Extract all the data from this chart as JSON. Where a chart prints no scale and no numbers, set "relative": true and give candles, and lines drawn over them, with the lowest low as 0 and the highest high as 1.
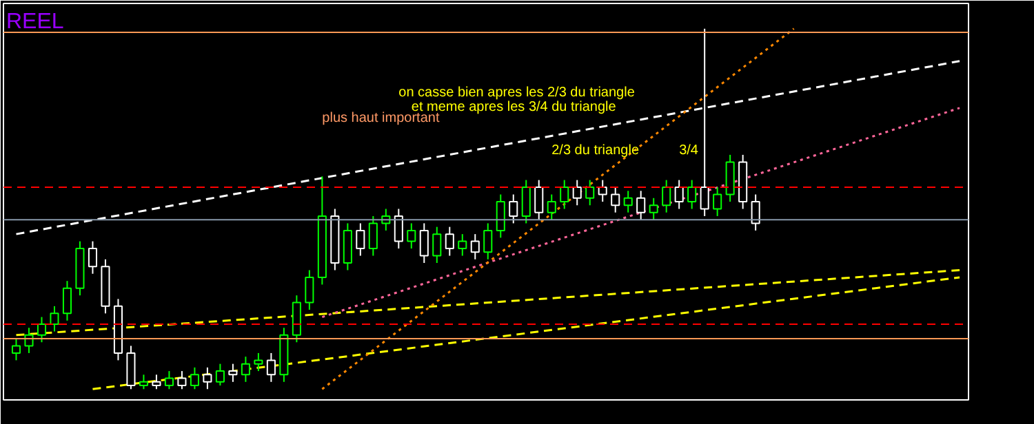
{
  "chart_data": {
    "type": "candlestick",
    "relative": true,
    "grid": false,
    "annotations": [
      "REEL",
      "plus haut important",
      "on casse bien apres les 2/3 du triangle",
      "et meme apres les 3/4 du triangle",
      "2/3 du triangle",
      "3/4"
    ],
    "categories": [
      null,
      null,
      null,
      null,
      null,
      null,
      null,
      null,
      null,
      null,
      null,
      null,
      null,
      null,
      null,
      null,
      null,
      null,
      null,
      null,
      null,
      null,
      null,
      null,
      null,
      null,
      null,
      null,
      null,
      null,
      null,
      null,
      null,
      null,
      null,
      null,
      null,
      null,
      null,
      null,
      null,
      null,
      null,
      null,
      null,
      null,
      null,
      null,
      null,
      null,
      null,
      null,
      null,
      null,
      null,
      null,
      null,
      null,
      null,
      null,
      null,
      null,
      null,
      null,
      null,
      null,
      null,
      null,
      null,
      null,
      null,
      null,
      null,
      null,
      null
    ],
    "ohlc": [
      [
        0.1,
        0.14,
        0.08,
        0.12
      ],
      [
        0.12,
        0.17,
        0.1,
        0.15
      ],
      [
        0.15,
        0.2,
        0.13,
        0.18
      ],
      [
        0.18,
        0.23,
        0.16,
        0.21
      ],
      [
        0.21,
        0.3,
        0.19,
        0.28
      ],
      [
        0.28,
        0.41,
        0.26,
        0.39
      ],
      [
        0.39,
        0.41,
        0.32,
        0.34
      ],
      [
        0.34,
        0.36,
        0.21,
        0.23
      ],
      [
        0.23,
        0.25,
        0.08,
        0.1
      ],
      [
        0.1,
        0.12,
        0,
        0.01
      ],
      [
        0.01,
        0.04,
        0,
        0.02
      ],
      [
        0.02,
        0.04,
        0,
        0.01
      ],
      [
        0.01,
        0.05,
        0,
        0.03
      ],
      [
        0.03,
        0.05,
        0,
        0.01
      ],
      [
        0.01,
        0.06,
        0,
        0.04
      ],
      [
        0.04,
        0.06,
        0,
        0.02
      ],
      [
        0.02,
        0.07,
        0.01,
        0.05
      ],
      [
        0.05,
        0.07,
        0.02,
        0.04
      ],
      [
        0.04,
        0.09,
        0.02,
        0.07
      ],
      [
        0.07,
        0.1,
        0.05,
        0.08
      ],
      [
        0.08,
        0.1,
        0.02,
        0.04
      ],
      [
        0.04,
        0.17,
        0.02,
        0.15
      ],
      [
        0.15,
        0.26,
        0.13,
        0.24
      ],
      [
        0.24,
        0.33,
        0.22,
        0.31
      ],
      [
        0.31,
        0.59,
        0.29,
        0.48
      ],
      [
        0.48,
        0.5,
        0.33,
        0.35
      ],
      [
        0.35,
        0.46,
        0.33,
        0.44
      ],
      [
        0.44,
        0.46,
        0.37,
        0.39
      ],
      [
        0.39,
        0.48,
        0.37,
        0.46
      ],
      [
        0.46,
        0.5,
        0.44,
        0.48
      ],
      [
        0.48,
        0.5,
        0.39,
        0.41
      ],
      [
        0.41,
        0.46,
        0.39,
        0.44
      ],
      [
        0.44,
        0.46,
        0.35,
        0.37
      ],
      [
        0.37,
        0.45,
        0.35,
        0.43
      ],
      [
        0.43,
        0.45,
        0.37,
        0.39
      ],
      [
        0.39,
        0.43,
        0.37,
        0.41
      ],
      [
        0.41,
        0.43,
        0.36,
        0.38
      ],
      [
        0.38,
        0.46,
        0.36,
        0.44
      ],
      [
        0.44,
        0.54,
        0.42,
        0.52
      ],
      [
        0.52,
        0.54,
        0.46,
        0.48
      ],
      [
        0.48,
        0.58,
        0.46,
        0.56
      ],
      [
        0.56,
        0.58,
        0.47,
        0.49
      ],
      [
        0.49,
        0.54,
        0.47,
        0.52
      ],
      [
        0.52,
        0.58,
        0.5,
        0.56
      ],
      [
        0.56,
        0.58,
        0.51,
        0.53
      ],
      [
        0.53,
        0.58,
        0.51,
        0.56
      ],
      [
        0.56,
        0.58,
        0.52,
        0.54
      ],
      [
        0.54,
        0.56,
        0.49,
        0.51
      ],
      [
        0.51,
        0.55,
        0.49,
        0.53
      ],
      [
        0.53,
        0.55,
        0.47,
        0.49
      ],
      [
        0.49,
        0.53,
        0.47,
        0.51
      ],
      [
        0.51,
        0.58,
        0.49,
        0.56
      ],
      [
        0.56,
        0.58,
        0.5,
        0.52
      ],
      [
        0.52,
        0.58,
        0.5,
        0.56
      ],
      [
        0.56,
        1.0,
        0.48,
        0.5
      ],
      [
        0.5,
        0.56,
        0.48,
        0.54
      ],
      [
        0.54,
        0.65,
        0.52,
        0.63
      ],
      [
        0.63,
        0.65,
        0.5,
        0.52
      ],
      [
        0.52,
        0.54,
        0.44,
        0.46
      ],
      null,
      null,
      null,
      null,
      null,
      null,
      null,
      null,
      null,
      null,
      null,
      null,
      null,
      null,
      null,
      null
    ],
    "colors": [
      "#00ff00",
      "#00ff00",
      "#00ff00",
      "#00ff00",
      "#00ff00",
      "#00ff00",
      "#ffffff",
      "#ffffff",
      "#ffffff",
      "#ffffff",
      "#00ff00",
      "#ffffff",
      "#00ff00",
      "#ffffff",
      "#00ff00",
      "#ffffff",
      "#00ff00",
      "#ffffff",
      "#00ff00",
      "#00ff00",
      "#ffffff",
      "#00ff00",
      "#00ff00",
      "#00ff00",
      "#00ff00",
      "#ffffff",
      "#00ff00",
      "#ffffff",
      "#00ff00",
      "#00ff00",
      "#ffffff",
      "#00ff00",
      "#ffffff",
      "#00ff00",
      "#ffffff",
      "#00ff00",
      "#ffffff",
      "#00ff00",
      "#00ff00",
      "#ffffff",
      "#00ff00",
      "#ffffff",
      "#00ff00",
      "#00ff00",
      "#ffffff",
      "#00ff00",
      "#ffffff",
      "#ffffff",
      "#00ff00",
      "#ffffff",
      "#00ff00",
      "#00ff00",
      "#ffffff",
      "#00ff00",
      "#ffffff",
      "#00ff00",
      "#00ff00",
      "#ffffff",
      "#ffffff",
      null,
      null,
      null,
      null,
      null,
      null,
      null,
      null,
      null,
      null,
      null,
      null,
      null,
      null,
      null,
      null
    ],
    "series": [
      {
        "type": "line",
        "color": "#ffff00",
        "line_style": "dashed",
        "values": [
          0.15,
          null,
          null,
          null,
          null,
          null,
          null,
          null,
          null,
          null,
          null,
          null,
          null,
          null,
          null,
          null,
          null,
          null,
          null,
          null,
          null,
          null,
          null,
          null,
          null,
          null,
          null,
          null,
          null,
          null,
          null,
          null,
          null,
          null,
          null,
          null,
          null,
          null,
          null,
          null,
          null,
          null,
          null,
          null,
          null,
          null,
          null,
          null,
          null,
          null,
          null,
          null,
          null,
          null,
          null,
          null,
          null,
          null,
          null,
          null,
          null,
          null,
          null,
          null,
          null,
          null,
          null,
          null,
          null,
          null,
          null,
          null,
          null,
          null,
          0.33
        ]
      },
      {
        "type": "line",
        "color": "#ffff00",
        "line_style": "dashed",
        "values": [
          null,
          null,
          null,
          null,
          null,
          null,
          0,
          null,
          null,
          null,
          null,
          null,
          null,
          null,
          null,
          null,
          null,
          null,
          null,
          null,
          null,
          null,
          null,
          null,
          null,
          null,
          null,
          null,
          null,
          null,
          null,
          null,
          null,
          null,
          null,
          null,
          null,
          null,
          null,
          null,
          null,
          null,
          null,
          null,
          null,
          null,
          null,
          null,
          null,
          null,
          null,
          null,
          null,
          null,
          null,
          null,
          null,
          null,
          null,
          null,
          null,
          null,
          null,
          null,
          null,
          null,
          null,
          null,
          null,
          null,
          null,
          null,
          null,
          null,
          0.31
        ]
      },
      {
        "type": "line",
        "color": "#ffffff",
        "line_style": "dashed",
        "values": [
          0.43,
          null,
          null,
          null,
          null,
          null,
          null,
          null,
          null,
          null,
          null,
          null,
          null,
          null,
          null,
          null,
          null,
          null,
          null,
          null,
          null,
          null,
          null,
          null,
          null,
          null,
          null,
          null,
          null,
          null,
          null,
          null,
          null,
          null,
          null,
          null,
          null,
          null,
          null,
          null,
          null,
          null,
          null,
          null,
          null,
          null,
          null,
          null,
          null,
          null,
          null,
          null,
          null,
          null,
          null,
          null,
          null,
          null,
          null,
          null,
          null,
          null,
          null,
          null,
          null,
          null,
          null,
          null,
          null,
          null,
          null,
          null,
          null,
          null,
          0.91
        ]
      },
      {
        "type": "line",
        "color": "#ff6699",
        "line_style": "dotted",
        "values": [
          null,
          null,
          null,
          null,
          null,
          null,
          null,
          null,
          null,
          null,
          null,
          null,
          null,
          null,
          null,
          null,
          null,
          null,
          null,
          null,
          null,
          null,
          null,
          null,
          0.2,
          null,
          null,
          null,
          null,
          null,
          null,
          null,
          null,
          null,
          null,
          null,
          null,
          null,
          null,
          null,
          null,
          null,
          null,
          null,
          null,
          null,
          null,
          null,
          null,
          null,
          null,
          null,
          null,
          null,
          null,
          null,
          null,
          null,
          null,
          null,
          null,
          null,
          null,
          null,
          null,
          null,
          null,
          null,
          null,
          null,
          null,
          null,
          null,
          null,
          0.78
        ]
      },
      {
        "type": "line",
        "color": "#ff8800",
        "line_style": "dotted",
        "values": [
          null,
          null,
          null,
          null,
          null,
          null,
          null,
          null,
          null,
          null,
          null,
          null,
          null,
          null,
          null,
          null,
          null,
          null,
          null,
          null,
          null,
          null,
          null,
          null,
          0,
          null,
          null,
          null,
          null,
          null,
          null,
          null,
          null,
          null,
          null,
          null,
          null,
          null,
          null,
          null,
          null,
          null,
          null,
          null,
          null,
          null,
          null,
          null,
          null,
          null,
          null,
          null,
          null,
          null,
          null,
          null,
          null,
          null,
          null,
          null,
          null,
          1.0,
          null,
          null,
          null,
          null,
          null,
          null,
          null,
          null,
          null,
          null,
          null,
          null,
          null
        ]
      }
    ],
    "ref_lines": [
      {
        "axis": "y",
        "value": 0.99,
        "color": "#ff9955",
        "line_style": "solid"
      },
      {
        "axis": "y",
        "value": 0.56,
        "color": "#ff0000",
        "line_style": "dashed"
      },
      {
        "axis": "y",
        "value": 0.47,
        "color": "#8899aa",
        "line_style": "solid"
      },
      {
        "axis": "y",
        "value": 0.18,
        "color": "#ff0000",
        "line_style": "dashed"
      },
      {
        "axis": "y",
        "value": 0.14,
        "color": "#ff9955",
        "line_style": "solid"
      }
    ]
  }
}
